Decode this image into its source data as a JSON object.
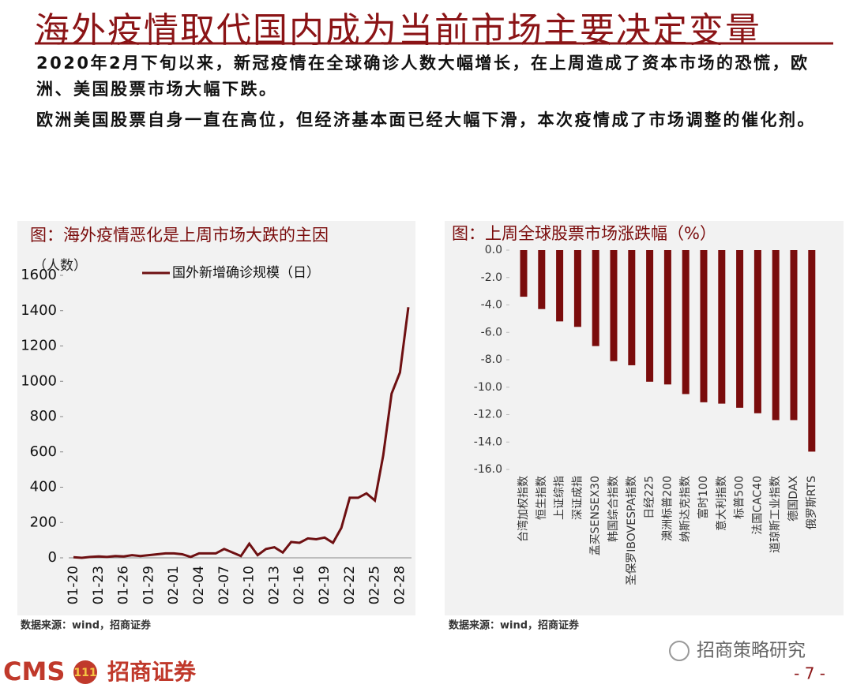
{
  "header": {
    "title": "海外疫情取代国内成为当前市场主要决定变量"
  },
  "paragraphs": [
    "2020年2月下旬以来，新冠疫情在全球确诊人数大幅增长，在上周造成了资本市场的恐慌，欧洲、美国股票市场大幅下跌。",
    "欧洲美国股票自身一直在高位，但经济基本面已经大幅下滑，本次疫情成了市场调整的催化剂。"
  ],
  "chart_data": [
    {
      "type": "line",
      "title": "图：海外疫情恶化是上周市场大跌的主因",
      "y_label": "（人数）",
      "categories": [
        "01-20",
        null,
        null,
        "01-23",
        null,
        null,
        "01-26",
        null,
        null,
        "01-29",
        null,
        null,
        "02-01",
        null,
        null,
        "02-04",
        null,
        null,
        "02-07",
        null,
        null,
        "02-10",
        null,
        null,
        "02-13",
        null,
        null,
        "02-16",
        null,
        null,
        "02-19",
        null,
        null,
        "02-22",
        null,
        null,
        "02-25",
        null,
        null,
        "02-28",
        null
      ],
      "series": [
        {
          "name": "国外新增确诊规模（日）",
          "color": "#6e1012",
          "values": [
            3,
            0,
            5,
            8,
            5,
            10,
            8,
            15,
            10,
            15,
            20,
            25,
            25,
            20,
            5,
            25,
            25,
            25,
            50,
            30,
            10,
            80,
            15,
            50,
            60,
            30,
            90,
            85,
            110,
            105,
            115,
            85,
            170,
            340,
            340,
            365,
            325,
            580,
            930,
            1050,
            1420
          ]
        }
      ],
      "ylim": [
        0,
        1600
      ],
      "yticks": [
        0,
        200,
        400,
        600,
        800,
        1000,
        1200,
        1400,
        1600
      ],
      "source": "数据来源：wind，招商证券"
    },
    {
      "type": "bar",
      "title": "图：上周全球股票市场涨跌幅（%）",
      "color": "#7a0c0c",
      "categories": [
        "台湾加权指数",
        "恒生指数",
        "上证综指",
        "深证成指",
        "孟买SENSEX30",
        "韩国综合指数",
        "圣保罗IBOVESPA指数",
        "日经225",
        "澳洲标普200",
        "纳斯达克指数",
        "富时100",
        "意大利指数",
        "标普500",
        "法国CAC40",
        "道琼斯工业指数",
        "德国DAX",
        "俄罗斯RTS"
      ],
      "values": [
        -3.4,
        -4.3,
        -5.2,
        -5.6,
        -7.0,
        -8.1,
        -8.4,
        -9.6,
        -9.8,
        -10.5,
        -11.1,
        -11.2,
        -11.5,
        -11.9,
        -12.4,
        -12.4,
        -14.7
      ],
      "ylim": [
        -16,
        0
      ],
      "yticks": [
        {
          "value": 0,
          "label": "0.0"
        },
        {
          "value": -2,
          "label": "-2.0"
        },
        {
          "value": -4,
          "label": "-4.0"
        },
        {
          "value": -6,
          "label": "-6.0"
        },
        {
          "value": -8,
          "label": "-8.0"
        },
        {
          "value": -10,
          "label": "-10.0"
        },
        {
          "value": -12,
          "label": "-12.0"
        },
        {
          "value": -14,
          "label": "-14.0"
        },
        {
          "value": -16,
          "label": "-16.0"
        }
      ],
      "source": "数据来源：wind，招商证券"
    }
  ],
  "footer": {
    "logo": "CMS",
    "company": "招商证券",
    "wechat": "招商策略研究",
    "page": "- 7 -"
  }
}
